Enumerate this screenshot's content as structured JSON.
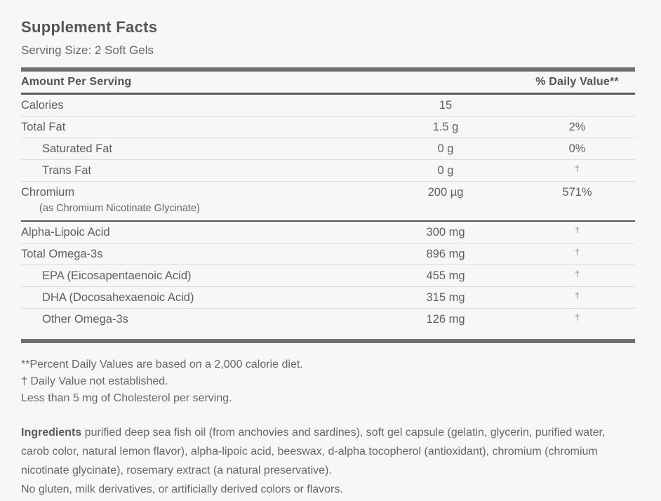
{
  "label": {
    "title": "Supplement Facts",
    "serving_size": "Serving Size: 2 Soft Gels"
  },
  "table": {
    "header": {
      "left": "Amount Per Serving",
      "right": "% Daily Value**"
    },
    "rows": [
      {
        "label": "Calories",
        "amount": "15",
        "dv": "",
        "indent": false,
        "sep": "thin"
      },
      {
        "label": "Total Fat",
        "amount": "1.5 g",
        "dv": "2%",
        "indent": false,
        "sep": "thin"
      },
      {
        "label": "Saturated Fat",
        "amount": "0 g",
        "dv": "0%",
        "indent": true,
        "sep": "thin"
      },
      {
        "label": "Trans Fat",
        "amount": "0 g",
        "dv": "†",
        "indent": true,
        "sep": "thin"
      },
      {
        "label": "Chromium",
        "amount": "200 µg",
        "dv": "571%",
        "indent": false,
        "sub": "(as Chromium Nicotinate Glycinate)",
        "sep": "medium"
      },
      {
        "label": "Alpha-Lipoic Acid",
        "amount": "300 mg",
        "dv": "†",
        "indent": false,
        "sep": "thin"
      },
      {
        "label": "Total Omega-3s",
        "amount": "896 mg",
        "dv": "†",
        "indent": false,
        "sep": "thin"
      },
      {
        "label": "EPA (Eicosapentaenoic Acid)",
        "amount": "455 mg",
        "dv": "†",
        "indent": true,
        "sep": "thin"
      },
      {
        "label": "DHA (Docosahexaenoic Acid)",
        "amount": "315 mg",
        "dv": "†",
        "indent": true,
        "sep": "thin"
      },
      {
        "label": "Other Omega-3s",
        "amount": "126 mg",
        "dv": "†",
        "indent": true,
        "sep": "none"
      }
    ]
  },
  "footnotes": {
    "line1": "**Percent Daily Values are based on a 2,000 calorie diet.",
    "line2": "† Daily Value not established.",
    "line3": "Less than 5 mg of Cholesterol per serving."
  },
  "ingredients": {
    "lead": "Ingredients",
    "body": " purified deep sea fish oil (from anchovies and sardines), soft gel capsule (gelatin, glycerin, purified water, carob color, natural lemon flavor), alpha-lipoic acid, beeswax, d-alpha tocopherol (antioxidant), chromium (chromium nicotinate glycinate), rosemary extract (a natural preservative).",
    "no_gluten": "No gluten, milk derivatives, or artificially derived colors or flavors."
  },
  "colors": {
    "background": "#f6f7f7",
    "thick_bar": "#6e6f73",
    "thin_separator": "#dadbdc",
    "medium_separator": "#55565a",
    "heading_text": "#555459",
    "body_text": "#5e5f63"
  }
}
